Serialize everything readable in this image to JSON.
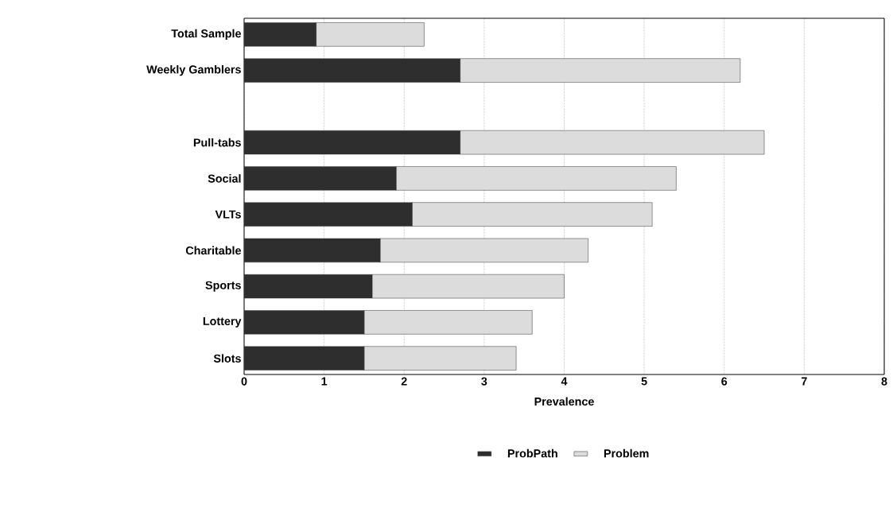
{
  "chart_data": {
    "type": "bar",
    "orientation": "horizontal",
    "stacked": true,
    "xlabel": "Prevalence",
    "categories": [
      "Total Sample",
      "Weekly Gamblers",
      null,
      "Pull-tabs",
      "Social",
      "VLTs",
      "Charitable",
      "Sports",
      "Lottery",
      "Slots"
    ],
    "series": [
      {
        "name": "ProbPath",
        "color": "#2e2e2e",
        "values": [
          0.9,
          2.7,
          null,
          2.7,
          1.9,
          2.1,
          1.7,
          1.6,
          1.5,
          1.5
        ]
      },
      {
        "name": "Problem",
        "color": "#dcdcdc",
        "values": [
          1.35,
          3.5,
          null,
          3.8,
          3.5,
          3.0,
          2.6,
          2.4,
          2.1,
          1.9
        ]
      }
    ],
    "xlim": [
      0,
      8
    ],
    "xticks": [
      0,
      1,
      2,
      3,
      4,
      5,
      6,
      7,
      8
    ],
    "grid": "x",
    "legend": "bottom"
  }
}
